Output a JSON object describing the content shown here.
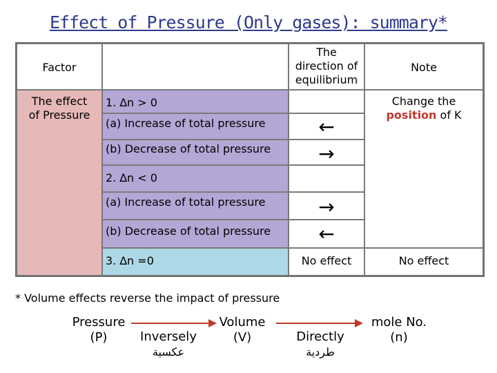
{
  "title": "Effect of Pressure (Only gases): summary*",
  "header": {
    "factor": "Factor",
    "direction_line1": "The",
    "direction_line2": "direction of",
    "direction_line3": "equilibrium",
    "note": "Note"
  },
  "factor_label_line1": "The effect",
  "factor_label_line2": "of Pressure",
  "rows": {
    "r1_label": "1. ∆n > 0",
    "r1a_label": "(a) Increase of total pressure",
    "r1a_arrow": "←",
    "r1b_label": "(b) Decrease of total pressure",
    "r1b_arrow": "→",
    "r2_label": "2. ∆n < 0",
    "r2a_label": "(a) Increase of total pressure",
    "r2a_arrow": "→",
    "r2b_label": "(b) Decrease of total pressure",
    "r2b_arrow": "←",
    "r3_label": "3. ∆n =0",
    "r3_direction": "No effect",
    "r3_note": "No effect"
  },
  "note_change_line1": "Change the",
  "note_position": "position",
  "note_of_k": "of K",
  "footnote": "* Volume effects reverse the impact of pressure",
  "relation": {
    "pressure_line1": "Pressure",
    "pressure_line2": "(P)",
    "inversely": "Inversely",
    "inversely_ar": "عكسية",
    "volume_line1": "Volume",
    "volume_line2": "(V)",
    "directly": "Directly",
    "directly_ar": "طردية",
    "mole_line1": "mole No.",
    "mole_line2": "(n)"
  },
  "colors": {
    "title": "#2e3a8c",
    "factor_bg": "#e6b8b8",
    "purple_bg": "#b4a7d6",
    "blue_bg": "#add8e6",
    "accent_red": "#c0392b"
  }
}
